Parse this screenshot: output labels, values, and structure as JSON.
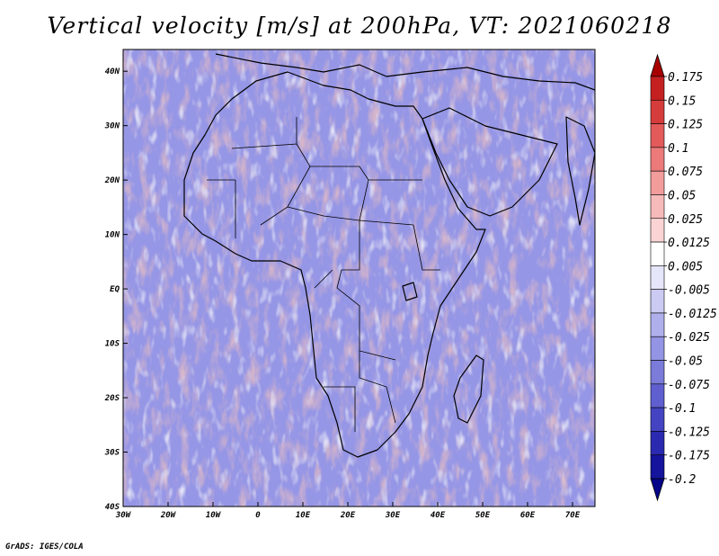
{
  "title": "Vertical velocity [m/s] at 200hPa, VT: 2021060218",
  "credit": "GrADS: IGES/COLA",
  "map": {
    "lon_labels": [
      "30W",
      "20W",
      "10W",
      "0",
      "10E",
      "20E",
      "30E",
      "40E",
      "50E",
      "60E",
      "70E"
    ],
    "lon_values": [
      -30,
      -20,
      -10,
      0,
      10,
      20,
      30,
      40,
      50,
      60,
      70
    ],
    "lon_range": [
      -30,
      75
    ],
    "lat_labels": [
      "40S",
      "30S",
      "20S",
      "10S",
      "EQ",
      "10N",
      "20N",
      "30N",
      "40N"
    ],
    "lat_values": [
      -40,
      -30,
      -20,
      -10,
      0,
      10,
      20,
      30,
      40
    ],
    "lat_range": [
      -40,
      44
    ]
  },
  "colorbar": {
    "levels": [
      "0.175",
      "0.15",
      "0.125",
      "0.1",
      "0.075",
      "0.05",
      "0.025",
      "0.0125",
      "0.005",
      "-0.005",
      "-0.0125",
      "-0.025",
      "-0.05",
      "-0.075",
      "-0.1",
      "-0.125",
      "-0.175",
      "-0.2"
    ],
    "colors": [
      "#a80000",
      "#c42020",
      "#d63c3c",
      "#e25a5a",
      "#ec7a7a",
      "#f29c9c",
      "#f6baba",
      "#fad4d4",
      "#ffffff",
      "#e6e6fa",
      "#cacaf2",
      "#afafec",
      "#9494e4",
      "#7b7bda",
      "#5f5fd0",
      "#4444c2",
      "#2a2ab0",
      "#14149c",
      "#05058a"
    ],
    "top_color": "#a80000",
    "bottom_color": "#05058a"
  }
}
